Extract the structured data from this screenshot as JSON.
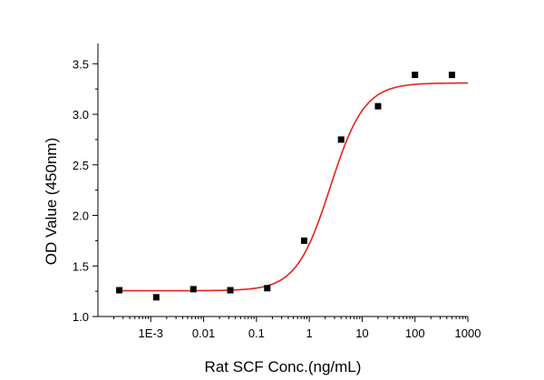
{
  "chart_data": {
    "type": "scatter",
    "title": "",
    "xlabel": "Rat SCF Conc.(ng/mL)",
    "ylabel": "OD Value (450nm)",
    "x_scale": "log",
    "xlim": [
      0.0001,
      1000
    ],
    "ylim": [
      1.0,
      3.7
    ],
    "x_ticks": [
      {
        "value": 0.001,
        "label": "1E-3"
      },
      {
        "value": 0.01,
        "label": "0.01"
      },
      {
        "value": 0.1,
        "label": "0.1"
      },
      {
        "value": 1,
        "label": "1"
      },
      {
        "value": 10,
        "label": "10"
      },
      {
        "value": 100,
        "label": "100"
      },
      {
        "value": 1000,
        "label": "1000"
      }
    ],
    "y_ticks": [
      {
        "value": 1.0,
        "label": "1.0"
      },
      {
        "value": 1.5,
        "label": "1.5"
      },
      {
        "value": 2.0,
        "label": "2.0"
      },
      {
        "value": 2.5,
        "label": "2.5"
      },
      {
        "value": 3.0,
        "label": "3.0"
      },
      {
        "value": 3.5,
        "label": "3.5"
      }
    ],
    "grid": false,
    "series": [
      {
        "kind": "points",
        "color": "#000000",
        "marker": "square",
        "x": [
          0.000254,
          0.00127,
          0.0064,
          0.032,
          0.16,
          0.8,
          4,
          20,
          100,
          500
        ],
        "y": [
          1.26,
          1.19,
          1.27,
          1.26,
          1.28,
          1.75,
          2.75,
          3.08,
          3.39,
          3.39
        ]
      },
      {
        "kind": "fit",
        "color": "#e8211a",
        "model": "4PL",
        "bottom": 1.255,
        "top": 3.31,
        "ec50": 2.5,
        "hill": 1.35,
        "x_range": [
          0.000254,
          1000
        ]
      }
    ]
  }
}
